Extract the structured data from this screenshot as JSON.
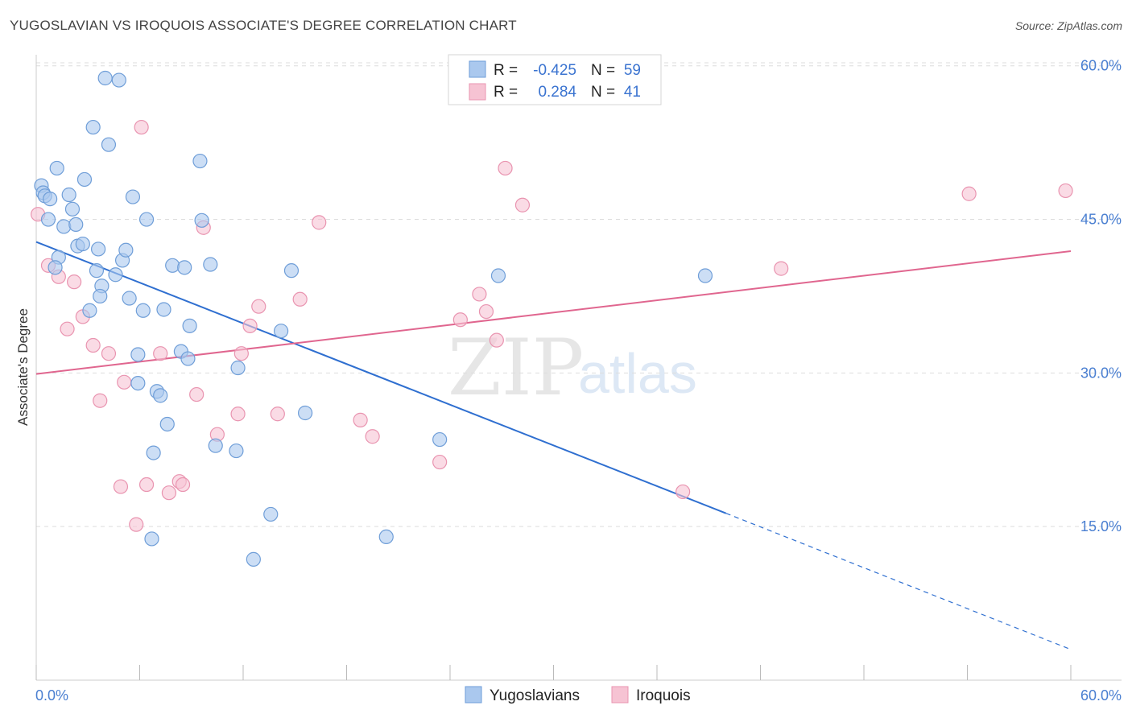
{
  "header": {
    "title": "YUGOSLAVIAN VS IROQUOIS ASSOCIATE'S DEGREE CORRELATION CHART",
    "source": "Source: ZipAtlas.com"
  },
  "legend": {
    "rows": [
      {
        "r_label": "R =",
        "r_value": "-0.425",
        "n_label": "N =",
        "n_value": "59"
      },
      {
        "r_label": "R =",
        "r_value": "0.284",
        "n_label": "N =",
        "n_value": "41"
      }
    ]
  },
  "watermark": {
    "zip": "ZIP",
    "atlas": "atlas"
  },
  "colors": {
    "blue_fill": "#aac8ee",
    "blue_stroke": "#6f9ed8",
    "blue_line": "#2f6fd0",
    "pink_fill": "#f6c3d3",
    "pink_stroke": "#e994b0",
    "pink_line": "#e0668f",
    "grid": "#dddddd",
    "tick_text": "#4a7fd1"
  },
  "chart_data": {
    "type": "scatter",
    "title": "YUGOSLAVIAN VS IROQUOIS ASSOCIATE'S DEGREE CORRELATION CHART",
    "xlabel": "",
    "ylabel": "Associate's Degree",
    "xlim": [
      0,
      60
    ],
    "ylim": [
      0,
      62
    ],
    "x_tick_labels": [
      "0.0%",
      "60.0%"
    ],
    "y_ticks": [
      15,
      30,
      45,
      60
    ],
    "y_tick_labels": [
      "15.0%",
      "30.0%",
      "45.0%",
      "60.0%"
    ],
    "grid": true,
    "legend_position": "top-center",
    "series": [
      {
        "name": "Yugoslavians",
        "color": "#aac8ee",
        "points": [
          [
            0.3,
            48.3
          ],
          [
            0.4,
            47.6
          ],
          [
            0.5,
            47.3
          ],
          [
            0.8,
            47.0
          ],
          [
            0.7,
            45.0
          ],
          [
            1.2,
            50.0
          ],
          [
            1.9,
            47.4
          ],
          [
            2.1,
            46.0
          ],
          [
            2.8,
            48.9
          ],
          [
            1.6,
            44.3
          ],
          [
            2.3,
            44.5
          ],
          [
            1.3,
            41.3
          ],
          [
            2.4,
            42.4
          ],
          [
            2.7,
            42.6
          ],
          [
            1.1,
            40.3
          ],
          [
            3.6,
            42.1
          ],
          [
            4.0,
            58.8
          ],
          [
            4.8,
            58.6
          ],
          [
            3.3,
            54.0
          ],
          [
            4.2,
            52.3
          ],
          [
            5.6,
            47.2
          ],
          [
            6.4,
            45.0
          ],
          [
            5.0,
            41.0
          ],
          [
            5.2,
            42.0
          ],
          [
            3.5,
            40.0
          ],
          [
            3.8,
            38.5
          ],
          [
            4.6,
            39.6
          ],
          [
            3.7,
            37.5
          ],
          [
            5.4,
            37.3
          ],
          [
            3.1,
            36.1
          ],
          [
            6.2,
            36.1
          ],
          [
            7.4,
            36.2
          ],
          [
            7.9,
            40.5
          ],
          [
            8.6,
            40.3
          ],
          [
            9.5,
            50.7
          ],
          [
            9.6,
            44.9
          ],
          [
            10.1,
            40.6
          ],
          [
            8.9,
            34.6
          ],
          [
            8.4,
            32.1
          ],
          [
            8.8,
            31.4
          ],
          [
            5.9,
            31.8
          ],
          [
            5.9,
            29.0
          ],
          [
            7.0,
            28.2
          ],
          [
            7.2,
            27.8
          ],
          [
            7.6,
            25.0
          ],
          [
            6.8,
            22.2
          ],
          [
            10.4,
            22.9
          ],
          [
            11.6,
            22.4
          ],
          [
            11.7,
            30.5
          ],
          [
            14.2,
            34.1
          ],
          [
            14.8,
            40.0
          ],
          [
            13.6,
            16.2
          ],
          [
            12.6,
            11.8
          ],
          [
            15.6,
            26.1
          ],
          [
            6.7,
            13.8
          ],
          [
            20.3,
            14.0
          ],
          [
            23.4,
            23.5
          ],
          [
            26.8,
            39.5
          ],
          [
            38.8,
            39.5
          ]
        ]
      },
      {
        "name": "Iroquois",
        "color": "#f6c3d3",
        "points": [
          [
            0.1,
            45.5
          ],
          [
            0.7,
            40.5
          ],
          [
            1.3,
            39.4
          ],
          [
            2.2,
            38.9
          ],
          [
            1.8,
            34.3
          ],
          [
            2.7,
            35.5
          ],
          [
            3.3,
            32.7
          ],
          [
            4.2,
            31.9
          ],
          [
            3.7,
            27.3
          ],
          [
            5.1,
            29.1
          ],
          [
            4.9,
            18.9
          ],
          [
            5.8,
            15.2
          ],
          [
            6.4,
            19.1
          ],
          [
            7.2,
            31.9
          ],
          [
            7.7,
            18.3
          ],
          [
            8.3,
            19.4
          ],
          [
            8.5,
            19.1
          ],
          [
            9.3,
            27.9
          ],
          [
            9.7,
            44.2
          ],
          [
            10.5,
            24.0
          ],
          [
            11.7,
            26.0
          ],
          [
            11.9,
            31.9
          ],
          [
            12.4,
            34.6
          ],
          [
            12.9,
            36.5
          ],
          [
            14.0,
            26.0
          ],
          [
            15.3,
            37.2
          ],
          [
            16.4,
            44.7
          ],
          [
            6.1,
            54.0
          ],
          [
            18.8,
            25.4
          ],
          [
            19.5,
            23.8
          ],
          [
            23.4,
            21.3
          ],
          [
            24.6,
            35.2
          ],
          [
            25.7,
            37.7
          ],
          [
            26.1,
            36.0
          ],
          [
            26.7,
            33.2
          ],
          [
            27.2,
            50.0
          ],
          [
            28.2,
            46.4
          ],
          [
            37.5,
            18.4
          ],
          [
            43.2,
            40.2
          ],
          [
            54.1,
            47.5
          ],
          [
            59.7,
            47.8
          ]
        ]
      }
    ],
    "trend_lines": [
      {
        "series": "Yugoslavians",
        "from": [
          0,
          42.8
        ],
        "to": [
          40.0,
          16.3
        ],
        "dashed_to": [
          60,
          3.0
        ]
      },
      {
        "series": "Iroquois",
        "from": [
          0,
          29.9
        ],
        "to": [
          60,
          41.9
        ]
      }
    ]
  }
}
